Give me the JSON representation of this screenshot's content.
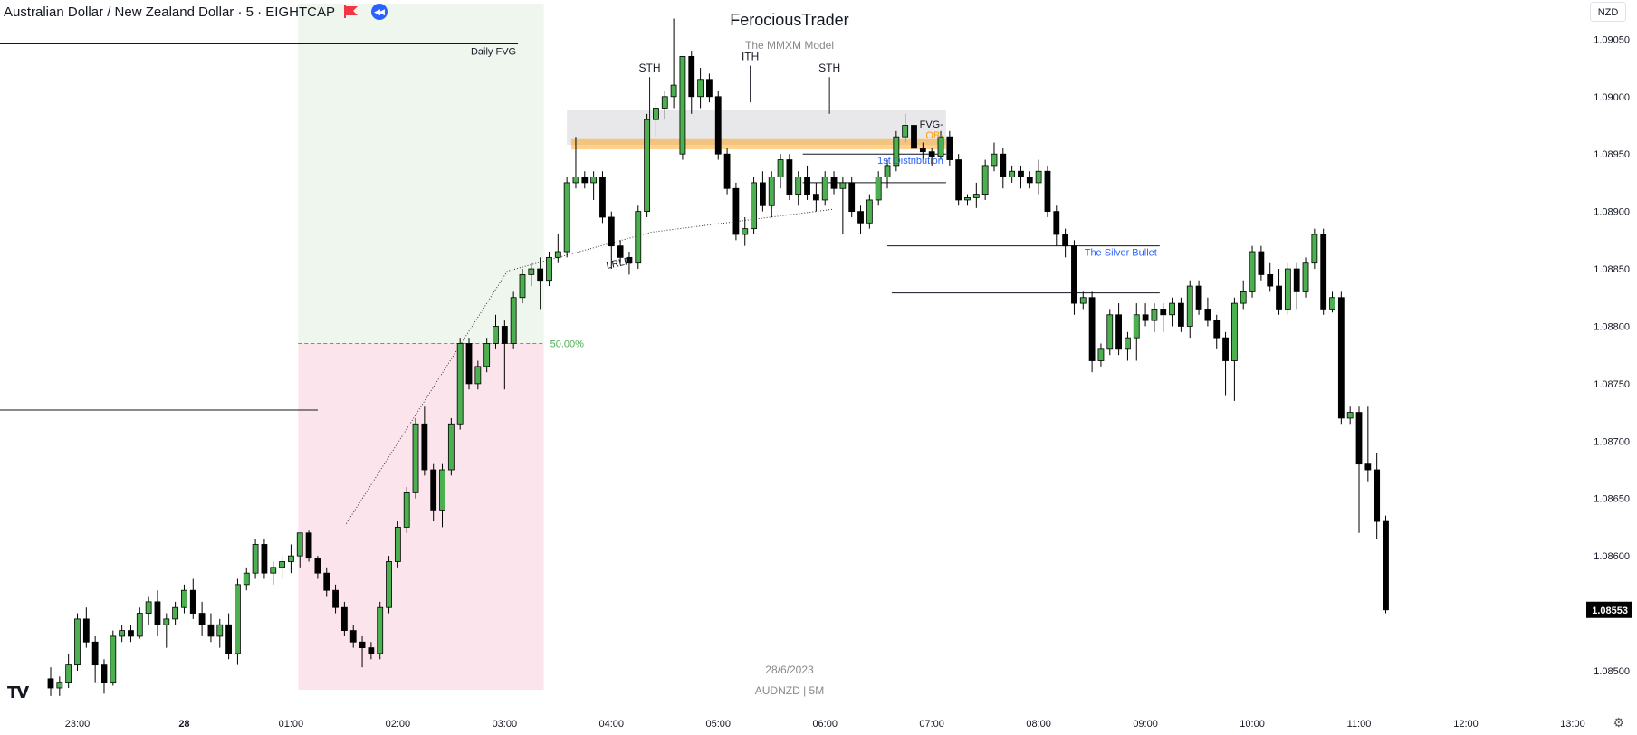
{
  "header": {
    "symbol_title": "Australian Dollar / New Zealand Dollar · 5 · EIGHTCAP"
  },
  "currency_selector": "NZD",
  "watermark": {
    "title": "FerociousTrader",
    "subtitle": "The MMXM Model",
    "date": "28/6/2023",
    "symbol_info": "AUDNZD | 5M"
  },
  "colors": {
    "up": "#4caf50",
    "down": "#000000",
    "premium_zone": "#fce4ec",
    "discount_zone": "#eef6ee",
    "fvg_band": "#e8e8ea",
    "ob_line": "#ff9800",
    "accent_blue": "#2962ff",
    "fib_green": "#4caf50"
  },
  "chart_data": {
    "type": "candlestick",
    "instrument": "AUDNZD",
    "timeframe": "5",
    "price_axis": {
      "ticks": [
        1.0905,
        1.09,
        1.0895,
        1.089,
        1.0885,
        1.088,
        1.0875,
        1.087,
        1.0865,
        1.086,
        1.0855,
        1.085
      ],
      "tick_labels": [
        "1.09050",
        "1.09000",
        "1.08950",
        "1.08900",
        "1.08850",
        "1.08800",
        "1.08750",
        "1.08700",
        "1.08650",
        "1.08600",
        "1.08550",
        "1.08500"
      ],
      "range": [
        1.08485,
        1.0907
      ],
      "last_price": 1.08553,
      "last_price_label": "1.08553"
    },
    "time_axis": {
      "labels": [
        "23:00",
        "28",
        "01:00",
        "02:00",
        "03:00",
        "04:00",
        "05:00",
        "06:00",
        "07:00",
        "08:00",
        "09:00",
        "10:00",
        "11:00",
        "12:00",
        "13:00"
      ],
      "label_indices": [
        3,
        15,
        27,
        39,
        51,
        63,
        75,
        87,
        99,
        111,
        123,
        135,
        147,
        159,
        171
      ],
      "bold_labels": [
        "28"
      ]
    },
    "candles": [
      [
        1.08493,
        1.08503,
        1.08478,
        1.08485
      ],
      [
        1.08485,
        1.08495,
        1.08478,
        1.0849
      ],
      [
        1.0849,
        1.08515,
        1.08485,
        1.08505
      ],
      [
        1.08505,
        1.0855,
        1.085,
        1.08545
      ],
      [
        1.08545,
        1.08555,
        1.0852,
        1.08525
      ],
      [
        1.08525,
        1.0853,
        1.0849,
        1.08505
      ],
      [
        1.08505,
        1.0851,
        1.0848,
        1.0849
      ],
      [
        1.0849,
        1.08535,
        1.08487,
        1.0853
      ],
      [
        1.0853,
        1.0854,
        1.08525,
        1.08535
      ],
      [
        1.08535,
        1.0854,
        1.08525,
        1.0853
      ],
      [
        1.0853,
        1.08555,
        1.08528,
        1.0855
      ],
      [
        1.0855,
        1.08565,
        1.0854,
        1.0856
      ],
      [
        1.0856,
        1.0857,
        1.0853,
        1.0854
      ],
      [
        1.0854,
        1.0855,
        1.0852,
        1.08545
      ],
      [
        1.08545,
        1.0856,
        1.0854,
        1.08555
      ],
      [
        1.08555,
        1.08575,
        1.0855,
        1.0857
      ],
      [
        1.0857,
        1.0858,
        1.08545,
        1.0855
      ],
      [
        1.0855,
        1.0856,
        1.0853,
        1.0854
      ],
      [
        1.0854,
        1.0855,
        1.08525,
        1.0853
      ],
      [
        1.0853,
        1.08545,
        1.0852,
        1.0854
      ],
      [
        1.0854,
        1.0855,
        1.0851,
        1.08515
      ],
      [
        1.08515,
        1.0858,
        1.08505,
        1.08575
      ],
      [
        1.08575,
        1.0859,
        1.0857,
        1.08585
      ],
      [
        1.08585,
        1.08615,
        1.0858,
        1.0861
      ],
      [
        1.0861,
        1.08615,
        1.0858,
        1.08585
      ],
      [
        1.08585,
        1.08595,
        1.08575,
        1.0859
      ],
      [
        1.0859,
        1.086,
        1.0858,
        1.08595
      ],
      [
        1.08595,
        1.0861,
        1.08585,
        1.086
      ],
      [
        1.086,
        1.08615,
        1.0859,
        1.0862
      ],
      [
        1.0862,
        1.08622,
        1.08595,
        1.08598
      ],
      [
        1.08598,
        1.086,
        1.0858,
        1.08585
      ],
      [
        1.08585,
        1.0859,
        1.08565,
        1.0857
      ],
      [
        1.0857,
        1.08575,
        1.0855,
        1.08555
      ],
      [
        1.08555,
        1.0856,
        1.0853,
        1.08535
      ],
      [
        1.08535,
        1.0854,
        1.0852,
        1.08525
      ],
      [
        1.08525,
        1.0853,
        1.08503,
        1.0852
      ],
      [
        1.0852,
        1.08525,
        1.0851,
        1.08515
      ],
      [
        1.08515,
        1.0856,
        1.0851,
        1.08555
      ],
      [
        1.08555,
        1.086,
        1.0855,
        1.08595
      ],
      [
        1.08595,
        1.0863,
        1.0859,
        1.08625
      ],
      [
        1.08625,
        1.0866,
        1.0862,
        1.08655
      ],
      [
        1.08655,
        1.0872,
        1.0865,
        1.08715
      ],
      [
        1.08715,
        1.0873,
        1.0867,
        1.08675
      ],
      [
        1.08675,
        1.0868,
        1.0863,
        1.0864
      ],
      [
        1.0864,
        1.0868,
        1.08625,
        1.08675
      ],
      [
        1.08675,
        1.0872,
        1.0867,
        1.08715
      ],
      [
        1.08715,
        1.0879,
        1.0871,
        1.08785
      ],
      [
        1.08785,
        1.0879,
        1.08745,
        1.0875
      ],
      [
        1.0875,
        1.0877,
        1.08745,
        1.08765
      ],
      [
        1.08765,
        1.0879,
        1.0876,
        1.08785
      ],
      [
        1.08785,
        1.0881,
        1.0878,
        1.088
      ],
      [
        1.088,
        1.08805,
        1.08745,
        1.08785
      ],
      [
        1.08785,
        1.0883,
        1.0878,
        1.08825
      ],
      [
        1.08825,
        1.0885,
        1.0882,
        1.08845
      ],
      [
        1.08845,
        1.08855,
        1.08835,
        1.0885
      ],
      [
        1.0885,
        1.0886,
        1.08815,
        1.0884
      ],
      [
        1.0884,
        1.08865,
        1.08835,
        1.0886
      ],
      [
        1.0886,
        1.0888,
        1.08855,
        1.08865
      ],
      [
        1.08865,
        1.0893,
        1.0886,
        1.08925
      ],
      [
        1.08925,
        1.08965,
        1.0892,
        1.0893
      ],
      [
        1.0893,
        1.08935,
        1.0892,
        1.08925
      ],
      [
        1.08925,
        1.08935,
        1.0891,
        1.0893
      ],
      [
        1.0893,
        1.08935,
        1.0889,
        1.08895
      ],
      [
        1.08895,
        1.089,
        1.0885,
        1.0887
      ],
      [
        1.0887,
        1.08875,
        1.08855,
        1.0886
      ],
      [
        1.0886,
        1.08865,
        1.08845,
        1.08855
      ],
      [
        1.08855,
        1.08905,
        1.0885,
        1.089
      ],
      [
        1.089,
        1.08985,
        1.08895,
        1.0898
      ],
      [
        1.0898,
        1.08995,
        1.08965,
        1.0899
      ],
      [
        1.0899,
        1.09005,
        1.0898,
        1.09
      ],
      [
        1.09,
        1.09068,
        1.0899,
        1.0901
      ],
      [
        1.0895,
        1.09035,
        1.08945,
        1.09035
      ],
      [
        1.09035,
        1.0904,
        1.08985,
        1.09
      ],
      [
        1.09,
        1.09025,
        1.0899,
        1.09015
      ],
      [
        1.09015,
        1.0902,
        1.08995,
        1.09
      ],
      [
        1.09,
        1.09005,
        1.08945,
        1.0895
      ],
      [
        1.0895,
        1.08955,
        1.08915,
        1.0892
      ],
      [
        1.0892,
        1.08925,
        1.08875,
        1.0888
      ],
      [
        1.0888,
        1.08895,
        1.0887,
        1.08885
      ],
      [
        1.08885,
        1.0893,
        1.0888,
        1.08925
      ],
      [
        1.08925,
        1.08935,
        1.089,
        1.08905
      ],
      [
        1.08905,
        1.08935,
        1.08895,
        1.0893
      ],
      [
        1.0893,
        1.0895,
        1.0892,
        1.08945
      ],
      [
        1.08945,
        1.0895,
        1.0891,
        1.08915
      ],
      [
        1.08915,
        1.08935,
        1.08905,
        1.0893
      ],
      [
        1.0893,
        1.0894,
        1.0891,
        1.08915
      ],
      [
        1.08915,
        1.08925,
        1.089,
        1.0891
      ],
      [
        1.0891,
        1.08935,
        1.08905,
        1.0893
      ],
      [
        1.0893,
        1.08935,
        1.08915,
        1.0892
      ],
      [
        1.0892,
        1.0893,
        1.0888,
        1.08925
      ],
      [
        1.08925,
        1.0893,
        1.08895,
        1.089
      ],
      [
        1.089,
        1.08905,
        1.0888,
        1.0889
      ],
      [
        1.0889,
        1.08915,
        1.08885,
        1.0891
      ],
      [
        1.0891,
        1.08935,
        1.08905,
        1.0893
      ],
      [
        1.0893,
        1.08945,
        1.0892,
        1.0894
      ],
      [
        1.0894,
        1.0897,
        1.08935,
        1.08965
      ],
      [
        1.08965,
        1.08985,
        1.0896,
        1.08975
      ],
      [
        1.08975,
        1.0898,
        1.0895,
        1.08955
      ],
      [
        1.08955,
        1.0896,
        1.08945,
        1.08952
      ],
      [
        1.08952,
        1.08955,
        1.0894,
        1.08948
      ],
      [
        1.08948,
        1.0897,
        1.08945,
        1.08965
      ],
      [
        1.08965,
        1.0897,
        1.0894,
        1.08945
      ],
      [
        1.08945,
        1.0895,
        1.08905,
        1.0891
      ],
      [
        1.0891,
        1.08915,
        1.08905,
        1.08912
      ],
      [
        1.08912,
        1.08925,
        1.08903,
        1.08915
      ],
      [
        1.08915,
        1.08945,
        1.0891,
        1.0894
      ],
      [
        1.0894,
        1.0896,
        1.08935,
        1.0895
      ],
      [
        1.0895,
        1.08955,
        1.0892,
        1.0893
      ],
      [
        1.0893,
        1.0894,
        1.08925,
        1.08935
      ],
      [
        1.08935,
        1.0894,
        1.0892,
        1.0893
      ],
      [
        1.0893,
        1.08935,
        1.0892,
        1.08925
      ],
      [
        1.08925,
        1.08945,
        1.08915,
        1.08935
      ],
      [
        1.08935,
        1.0894,
        1.08895,
        1.089
      ],
      [
        1.089,
        1.08905,
        1.0887,
        1.0888
      ],
      [
        1.0888,
        1.08885,
        1.0886,
        1.0887
      ],
      [
        1.0887,
        1.08875,
        1.0881,
        1.0882
      ],
      [
        1.0882,
        1.0883,
        1.08815,
        1.08825
      ],
      [
        1.08825,
        1.0883,
        1.0876,
        1.0877
      ],
      [
        1.0877,
        1.08785,
        1.08765,
        1.0878
      ],
      [
        1.0878,
        1.08815,
        1.08775,
        1.0881
      ],
      [
        1.0881,
        1.0882,
        1.08775,
        1.0878
      ],
      [
        1.0878,
        1.08795,
        1.0877,
        1.0879
      ],
      [
        1.0879,
        1.0882,
        1.0877,
        1.0881
      ],
      [
        1.0881,
        1.0882,
        1.088,
        1.08805
      ],
      [
        1.08805,
        1.0882,
        1.08795,
        1.08815
      ],
      [
        1.08815,
        1.0882,
        1.08795,
        1.0881
      ],
      [
        1.0881,
        1.08825,
        1.088,
        1.0882
      ],
      [
        1.0882,
        1.08825,
        1.08795,
        1.088
      ],
      [
        1.088,
        1.0884,
        1.0879,
        1.08835
      ],
      [
        1.08835,
        1.0884,
        1.0881,
        1.08815
      ],
      [
        1.08815,
        1.08825,
        1.088,
        1.08805
      ],
      [
        1.08805,
        1.0881,
        1.0878,
        1.0879
      ],
      [
        1.0879,
        1.08795,
        1.0874,
        1.0877
      ],
      [
        1.0877,
        1.08825,
        1.08735,
        1.0882
      ],
      [
        1.0882,
        1.0884,
        1.08815,
        1.0883
      ],
      [
        1.0883,
        1.0887,
        1.08825,
        1.08865
      ],
      [
        1.08865,
        1.0887,
        1.0884,
        1.08845
      ],
      [
        1.08845,
        1.08855,
        1.0883,
        1.08835
      ],
      [
        1.08835,
        1.0885,
        1.0881,
        1.08815
      ],
      [
        1.08815,
        1.08855,
        1.0881,
        1.0885
      ],
      [
        1.0885,
        1.08855,
        1.08815,
        1.0883
      ],
      [
        1.0883,
        1.0886,
        1.08825,
        1.08855
      ],
      [
        1.08855,
        1.08885,
        1.0885,
        1.0888
      ],
      [
        1.0888,
        1.08885,
        1.0881,
        1.08815
      ],
      [
        1.08815,
        1.0883,
        1.08812,
        1.08825
      ],
      [
        1.08825,
        1.0883,
        1.08715,
        1.0872
      ],
      [
        1.0872,
        1.0873,
        1.08715,
        1.08725
      ],
      [
        1.08725,
        1.0873,
        1.0862,
        1.0868
      ],
      [
        1.0868,
        1.0873,
        1.08665,
        1.08675
      ],
      [
        1.08675,
        1.0869,
        1.08615,
        1.0863
      ],
      [
        1.0863,
        1.08635,
        1.0855,
        1.08553
      ]
    ],
    "annotations": {
      "daily_fvg_label": "Daily FVG",
      "fib_50_label": "50.00%",
      "sth_label": "STH",
      "ith_label": "ITH",
      "fvg_label": "FVG-",
      "ob_label": "OB-",
      "first_distribution_label": "1st Distribution",
      "silver_bullet_label": "The Silver Bullet",
      "lrlr_label": "LRLR"
    },
    "levels": {
      "daily_fvg_top": 1.09046,
      "daily_fvg_bottom": 1.08727,
      "fib_50": 1.08785,
      "fvg_top": 1.08988,
      "fvg_bottom": 1.08958,
      "ob_top": 1.08963,
      "ob_bottom": 1.08954,
      "first_distribution_upper": 1.0895,
      "first_distribution_lower": 1.08925,
      "silver_bullet_upper": 1.0887,
      "silver_bullet_lower": 1.08829
    }
  }
}
